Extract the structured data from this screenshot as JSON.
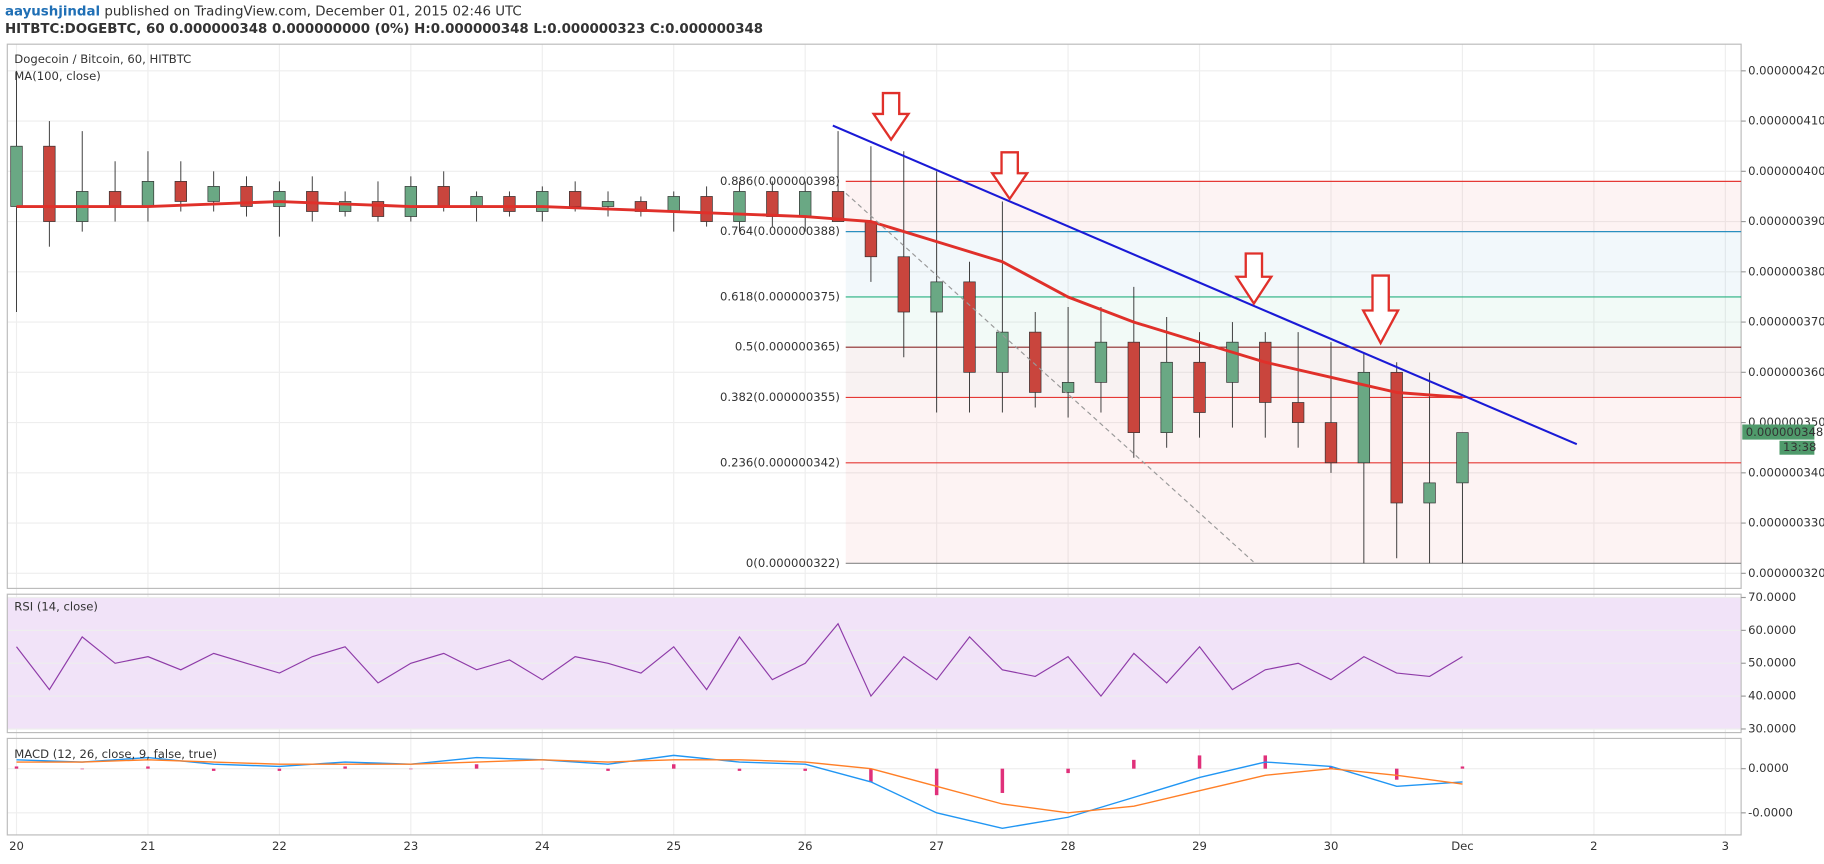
{
  "header": {
    "author": "aayushjindal",
    "published": " published on TradingView.com, December 01, 2015 02:46 UTC",
    "symbol_line": "HITBTC:DOGEBTC, 60 0.000000348 0.000000000 (0%) H:0.000000348 L:0.000000323 C:0.000000348"
  },
  "chart_data": [
    {
      "type": "candlestick",
      "title": "Dogecoin / Bitcoin, 60, HITBTC",
      "x": [
        0,
        0.25,
        0.5,
        0.75,
        1,
        1.25,
        1.5,
        1.75,
        2,
        2.25,
        2.5,
        2.75,
        3,
        3.25,
        3.5,
        3.75,
        4,
        4.25,
        4.5,
        4.75,
        5,
        5.25,
        5.5,
        5.75,
        6,
        6.25,
        6.5,
        6.75,
        7,
        7.25,
        7.5,
        7.75,
        8,
        8.25,
        8.5,
        8.75,
        9,
        9.25,
        9.5,
        9.75,
        10,
        10.25,
        10.5,
        10.75,
        11
      ],
      "open": [
        3.93e-07,
        4.05e-07,
        3.9e-07,
        3.96e-07,
        3.93e-07,
        3.98e-07,
        3.94e-07,
        3.97e-07,
        3.93e-07,
        3.96e-07,
        3.92e-07,
        3.94e-07,
        3.91e-07,
        3.97e-07,
        3.93e-07,
        3.95e-07,
        3.92e-07,
        3.96e-07,
        3.93e-07,
        3.94e-07,
        3.92e-07,
        3.95e-07,
        3.9e-07,
        3.96e-07,
        3.91e-07,
        3.96e-07,
        3.9e-07,
        3.83e-07,
        3.72e-07,
        3.78e-07,
        3.6e-07,
        3.68e-07,
        3.56e-07,
        3.58e-07,
        3.66e-07,
        3.48e-07,
        3.62e-07,
        3.58e-07,
        3.66e-07,
        3.54e-07,
        3.5e-07,
        3.42e-07,
        3.6e-07,
        3.34e-07,
        3.38e-07
      ],
      "high": [
        4.2e-07,
        4.1e-07,
        4.08e-07,
        4.02e-07,
        4.04e-07,
        4.02e-07,
        4e-07,
        3.99e-07,
        3.98e-07,
        3.99e-07,
        3.96e-07,
        3.98e-07,
        3.99e-07,
        4e-07,
        3.96e-07,
        3.96e-07,
        3.97e-07,
        3.98e-07,
        3.96e-07,
        3.95e-07,
        3.96e-07,
        3.97e-07,
        3.98e-07,
        3.98e-07,
        3.98e-07,
        4.08e-07,
        4.05e-07,
        4.04e-07,
        4e-07,
        3.82e-07,
        3.94e-07,
        3.72e-07,
        3.73e-07,
        3.73e-07,
        3.77e-07,
        3.71e-07,
        3.68e-07,
        3.7e-07,
        3.68e-07,
        3.68e-07,
        3.66e-07,
        3.64e-07,
        3.62e-07,
        3.6e-07,
        3.48e-07
      ],
      "low": [
        3.72e-07,
        3.85e-07,
        3.88e-07,
        3.9e-07,
        3.9e-07,
        3.92e-07,
        3.92e-07,
        3.91e-07,
        3.87e-07,
        3.9e-07,
        3.91e-07,
        3.9e-07,
        3.9e-07,
        3.92e-07,
        3.9e-07,
        3.91e-07,
        3.9e-07,
        3.92e-07,
        3.91e-07,
        3.91e-07,
        3.88e-07,
        3.89e-07,
        3.88e-07,
        3.89e-07,
        3.88e-07,
        3.9e-07,
        3.78e-07,
        3.63e-07,
        3.52e-07,
        3.52e-07,
        3.52e-07,
        3.53e-07,
        3.51e-07,
        3.52e-07,
        3.43e-07,
        3.45e-07,
        3.47e-07,
        3.49e-07,
        3.47e-07,
        3.45e-07,
        3.4e-07,
        3.22e-07,
        3.23e-07,
        3.22e-07,
        3.22e-07
      ],
      "close": [
        4.05e-07,
        3.9e-07,
        3.96e-07,
        3.93e-07,
        3.98e-07,
        3.94e-07,
        3.97e-07,
        3.93e-07,
        3.96e-07,
        3.92e-07,
        3.94e-07,
        3.91e-07,
        3.97e-07,
        3.93e-07,
        3.95e-07,
        3.92e-07,
        3.96e-07,
        3.93e-07,
        3.94e-07,
        3.92e-07,
        3.95e-07,
        3.9e-07,
        3.96e-07,
        3.91e-07,
        3.96e-07,
        3.9e-07,
        3.83e-07,
        3.72e-07,
        3.78e-07,
        3.6e-07,
        3.68e-07,
        3.56e-07,
        3.58e-07,
        3.66e-07,
        3.48e-07,
        3.62e-07,
        3.52e-07,
        3.66e-07,
        3.54e-07,
        3.5e-07,
        3.42e-07,
        3.6e-07,
        3.34e-07,
        3.38e-07,
        3.48e-07
      ],
      "up_color": "#6aa884",
      "down_color": "#c9453d",
      "xlim": [
        -0.07,
        13.12
      ],
      "xticks": [
        {
          "value": 0,
          "label": "20"
        },
        {
          "value": 1,
          "label": "21"
        },
        {
          "value": 2,
          "label": "22"
        },
        {
          "value": 3,
          "label": "23"
        },
        {
          "value": 4,
          "label": "24"
        },
        {
          "value": 5,
          "label": "25"
        },
        {
          "value": 6,
          "label": "26"
        },
        {
          "value": 7,
          "label": "27"
        },
        {
          "value": 8,
          "label": "28"
        },
        {
          "value": 9,
          "label": "29"
        },
        {
          "value": 10,
          "label": "30"
        },
        {
          "value": 11,
          "label": "Dec"
        },
        {
          "value": 12,
          "label": "2"
        },
        {
          "value": 13,
          "label": "3"
        }
      ],
      "ylim": [
        3.17e-07,
        4.253e-07
      ],
      "yticks": [
        {
          "value": 4.2e-07,
          "label": "0.000000420"
        },
        {
          "value": 4.1e-07,
          "label": "0.000000410"
        },
        {
          "value": 4e-07,
          "label": "0.000000400"
        },
        {
          "value": 3.9e-07,
          "label": "0.000000390"
        },
        {
          "value": 3.8e-07,
          "label": "0.000000380"
        },
        {
          "value": 3.7e-07,
          "label": "0.000000370"
        },
        {
          "value": 3.6e-07,
          "label": "0.000000360"
        },
        {
          "value": 3.5e-07,
          "label": "0.000000350"
        },
        {
          "value": 3.4e-07,
          "label": "0.000000340"
        },
        {
          "value": 3.3e-07,
          "label": "0.000000330"
        },
        {
          "value": 3.2e-07,
          "label": "0.000000320"
        }
      ],
      "grid": true,
      "ma": {
        "name": "MA(100, close)",
        "color": "#e0302a",
        "x": [
          0,
          1,
          2,
          3,
          4,
          5,
          6,
          6.5,
          7,
          7.5,
          8,
          8.5,
          9,
          9.5,
          10,
          10.5,
          11
        ],
        "values": [
          3.93e-07,
          3.93e-07,
          3.94e-07,
          3.93e-07,
          3.93e-07,
          3.92e-07,
          3.91e-07,
          3.9e-07,
          3.86e-07,
          3.82e-07,
          3.75e-07,
          3.7e-07,
          3.66e-07,
          3.62e-07,
          3.59e-07,
          3.56e-07,
          3.55e-07
        ]
      },
      "fib_levels": [
        {
          "label": "0.886(0.000000398)",
          "value": 3.98e-07,
          "color": "#e53935"
        },
        {
          "label": "0.764(0.000000388)",
          "value": 3.88e-07,
          "color": "#2a8fbf"
        },
        {
          "label": "0.618(0.000000375)",
          "value": 3.75e-07,
          "color": "#26b07f"
        },
        {
          "label": "0.5(0.000000365)",
          "value": 3.65e-07,
          "color": "#8b2a2a"
        },
        {
          "label": "0.382(0.000000355)",
          "value": 3.55e-07,
          "color": "#e53935"
        },
        {
          "label": "0.236(0.000000342)",
          "value": 3.42e-07,
          "color": "#e53935"
        },
        {
          "label": "0(0.000000322)",
          "value": 3.22e-07,
          "color": "#888888"
        }
      ],
      "trendlines": [
        {
          "color": "#1a1ad6",
          "x": [
            6.21,
            11.87
          ],
          "values": [
            4.091e-07,
            3.457e-07
          ]
        },
        {
          "color": "#999999",
          "dash": true,
          "x": [
            6.31,
            9.41
          ],
          "values": [
            3.956e-07,
            3.223e-07
          ]
        }
      ],
      "last_price": {
        "label": "0.000000348",
        "value": 3.48e-07,
        "countdown": "13:38",
        "color": "#4f9a6b"
      }
    },
    {
      "type": "line",
      "title": "RSI (14, close)",
      "color": "#8e3ba8",
      "band_color": "#f1e3f8",
      "x": [
        0,
        0.25,
        0.5,
        0.75,
        1,
        1.25,
        1.5,
        1.75,
        2,
        2.25,
        2.5,
        2.75,
        3,
        3.25,
        3.5,
        3.75,
        4,
        4.25,
        4.5,
        4.75,
        5,
        5.25,
        5.5,
        5.75,
        6,
        6.25,
        6.5,
        6.75,
        7,
        7.25,
        7.5,
        7.75,
        8,
        8.25,
        8.5,
        8.75,
        9,
        9.25,
        9.5,
        9.75,
        10,
        10.25,
        10.5,
        10.75,
        11
      ],
      "values": [
        55,
        42,
        58,
        50,
        52,
        48,
        53,
        50,
        47,
        52,
        55,
        44,
        50,
        53,
        48,
        51,
        45,
        52,
        50,
        47,
        55,
        42,
        58,
        45,
        50,
        62,
        40,
        52,
        45,
        58,
        48,
        46,
        52,
        40,
        53,
        44,
        55,
        42,
        48,
        50,
        45,
        52,
        47,
        46,
        52
      ],
      "ylim": [
        28.9,
        71
      ],
      "yticks": [
        {
          "value": 70,
          "label": "70.0000"
        },
        {
          "value": 60,
          "label": "60.0000"
        },
        {
          "value": 50,
          "label": "50.0000"
        },
        {
          "value": 40,
          "label": "40.0000"
        },
        {
          "value": 30,
          "label": "30.0000"
        }
      ],
      "band": [
        30,
        70
      ]
    },
    {
      "type": "macd",
      "title": "MACD (12, 26, close, 9, false, true)",
      "x": [
        0,
        0.5,
        1,
        1.5,
        2,
        2.5,
        3,
        3.5,
        4,
        4.5,
        5,
        5.5,
        6,
        6.5,
        7,
        7.5,
        8,
        8.5,
        9,
        9.5,
        10,
        10.5,
        11
      ],
      "series": [
        {
          "color": "#2196f3",
          "values": [
            4e-10,
            3e-10,
            5e-10,
            2e-10,
            1e-10,
            3e-10,
            2e-10,
            5e-10,
            4e-10,
            2e-10,
            6e-10,
            3e-10,
            2e-10,
            -6e-10,
            -2e-09,
            -2.7e-09,
            -2.2e-09,
            -1.3e-09,
            -4e-10,
            3e-10,
            1e-10,
            -8e-10,
            -6e-10
          ]
        },
        {
          "color": "#ff7f27",
          "values": [
            3e-10,
            3e-10,
            4e-10,
            3e-10,
            2e-10,
            2e-10,
            2e-10,
            3e-10,
            4e-10,
            3e-10,
            4e-10,
            4e-10,
            3e-10,
            0,
            -8e-10,
            -1.6e-09,
            -2e-09,
            -1.7e-09,
            -1e-09,
            -3e-10,
            0,
            -3e-10,
            -7e-10
          ]
        }
      ],
      "histogram": {
        "color": "#e0307a",
        "values": [
          1e-10,
          0,
          1e-10,
          -1e-10,
          -1e-10,
          1e-10,
          0,
          2e-10,
          0,
          -1e-10,
          2e-10,
          -1e-10,
          -1e-10,
          -6e-10,
          -1.2e-09,
          -1.1e-09,
          -2e-10,
          4e-10,
          6e-10,
          6e-10,
          1e-10,
          -5e-10,
          1e-10
        ]
      },
      "ylim": [
        -3e-09,
        1.37e-09
      ],
      "yticks": [
        {
          "value": 0,
          "label": "0.0000"
        },
        {
          "value": -2e-09,
          "label": "-0.0000"
        }
      ]
    }
  ]
}
